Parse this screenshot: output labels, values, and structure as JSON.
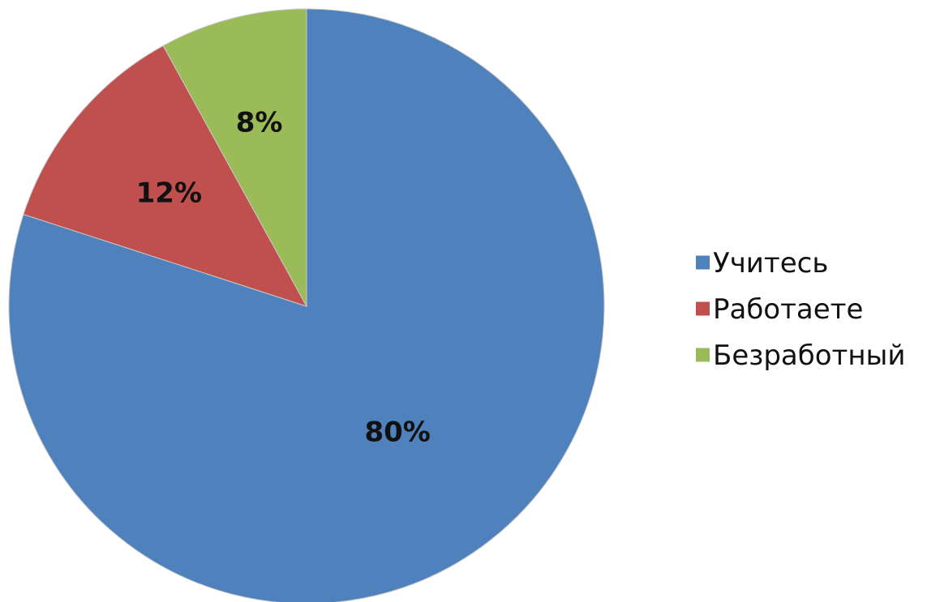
{
  "chart_data": {
    "type": "pie",
    "title": "",
    "categories": [
      "Учитесь",
      "Работаете",
      "Безработный"
    ],
    "values": [
      80,
      12,
      8
    ],
    "labels": [
      "80%",
      "12%",
      "8%"
    ],
    "colors": [
      "#4f81bd",
      "#c0504d",
      "#9bbb59"
    ],
    "start": "top",
    "direction": "clockwise",
    "legend": "right"
  }
}
